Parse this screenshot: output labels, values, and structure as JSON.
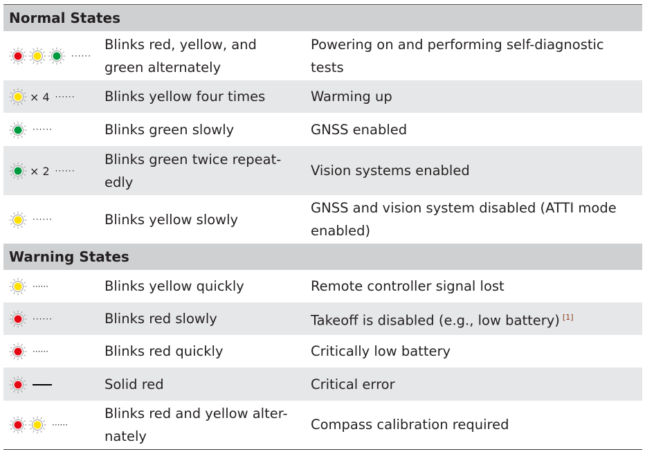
{
  "colors": {
    "red": "#e30613",
    "yellow": "#ffe000",
    "green": "#009a3e"
  },
  "sections": [
    {
      "title": "Normal States",
      "rows": [
        {
          "lights": [
            "red",
            "yellow",
            "green"
          ],
          "count": "",
          "pattern": "slow",
          "desc": "Blinks red, yellow, and green alternately",
          "meaning": "Powering on and performing self-diagnostic tests",
          "note": ""
        },
        {
          "lights": [
            "yellow"
          ],
          "count": "× 4",
          "pattern": "slow",
          "desc": "Blinks yellow four times",
          "meaning": "Warming up",
          "note": ""
        },
        {
          "lights": [
            "green"
          ],
          "count": "",
          "pattern": "slow",
          "desc": "Blinks green slowly",
          "meaning": "GNSS enabled",
          "note": ""
        },
        {
          "lights": [
            "green"
          ],
          "count": "× 2",
          "pattern": "slow",
          "desc": "Blinks green twice repeat-edly",
          "meaning": "Vision systems enabled",
          "note": ""
        },
        {
          "lights": [
            "yellow"
          ],
          "count": "",
          "pattern": "slow",
          "desc": "Blinks yellow slowly",
          "meaning": "GNSS and vision system disabled (ATTI mode enabled)",
          "note": ""
        }
      ]
    },
    {
      "title": "Warning States",
      "rows": [
        {
          "lights": [
            "yellow"
          ],
          "count": "",
          "pattern": "quick",
          "desc": "Blinks yellow quickly",
          "meaning": "Remote controller signal lost",
          "note": ""
        },
        {
          "lights": [
            "red"
          ],
          "count": "",
          "pattern": "slow",
          "desc": "Blinks red slowly",
          "meaning": "Takeoff is disabled (e.g., low battery)",
          "note": "[1]"
        },
        {
          "lights": [
            "red"
          ],
          "count": "",
          "pattern": "quick",
          "desc": "Blinks red quickly",
          "meaning": "Critically low battery",
          "note": ""
        },
        {
          "lights": [
            "red"
          ],
          "count": "",
          "pattern": "solid",
          "desc": "Solid red",
          "meaning": "Critical error",
          "note": ""
        },
        {
          "lights": [
            "red",
            "yellow"
          ],
          "count": "",
          "pattern": "quick",
          "desc": "Blinks red and yellow alter-nately",
          "meaning": "Compass calibration required",
          "note": ""
        }
      ]
    }
  ]
}
